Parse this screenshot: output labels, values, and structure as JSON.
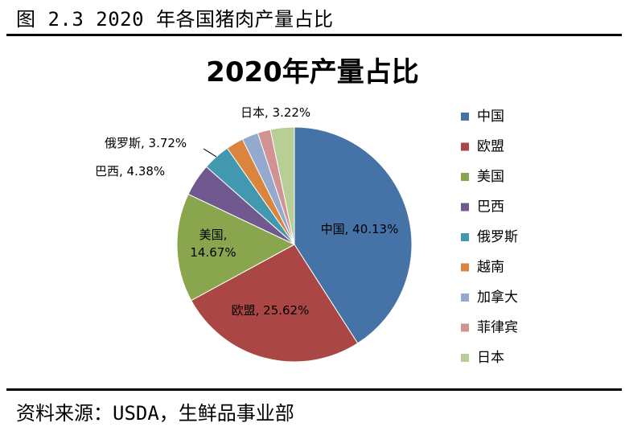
{
  "figure_caption": "图 2.3 2020 年各国猪肉产量占比",
  "source_note": "资料来源：USDA，生鲜品事业部",
  "chart_data": {
    "type": "pie",
    "title": "2020年产量占比",
    "categories": [
      "中国",
      "欧盟",
      "美国",
      "巴西",
      "俄罗斯",
      "越南",
      "加拿大",
      "菲律宾",
      "日本"
    ],
    "values": [
      40.13,
      25.62,
      14.67,
      4.38,
      3.72,
      2.35,
      2.2,
      1.73,
      3.22
    ],
    "data_labels": [
      "中国, 40.13%",
      "欧盟, 25.62%",
      "美国, 14.67%",
      "巴西, 4.38%",
      "俄罗斯, 3.72%",
      "",
      "",
      "",
      "日本, 3.22%"
    ],
    "colors": [
      "#4572A7",
      "#AA4643",
      "#89A54E",
      "#71588F",
      "#4198AF",
      "#DB843D",
      "#93A9CF",
      "#D19392",
      "#B9CD96"
    ],
    "legend_position": "right",
    "start_angle": "12 o'clock, clockwise"
  }
}
